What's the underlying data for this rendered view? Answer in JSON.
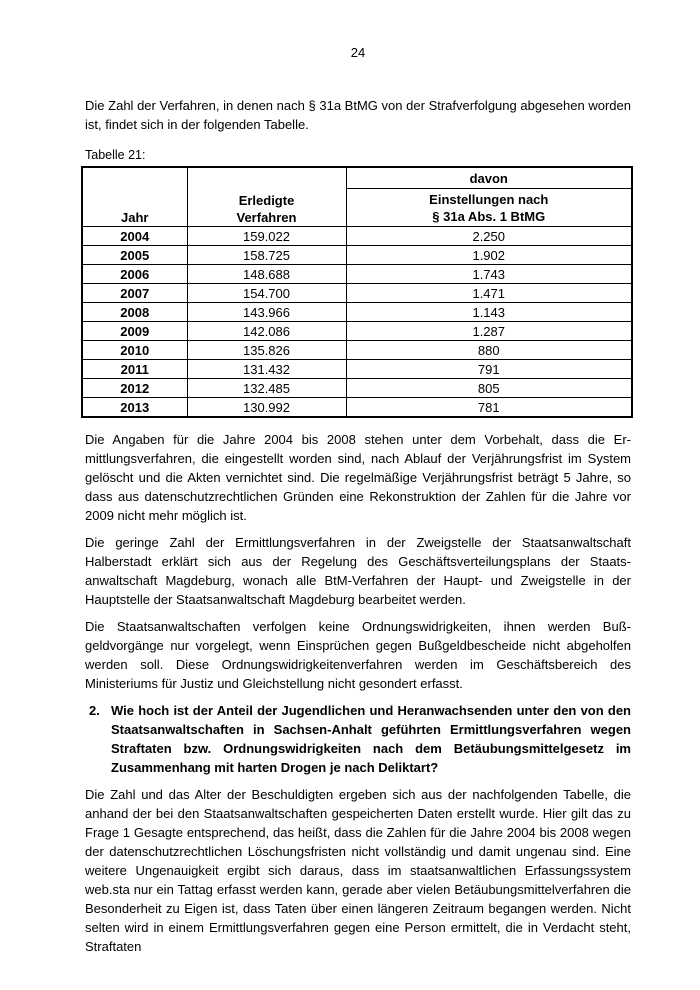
{
  "page_number": "24",
  "intro_paragraph": "Die Zahl der Verfahren, in denen nach § 31a BtMG von der Strafverfolgung abgese­hen worden ist, findet sich in der folgenden Tabelle.",
  "table_label": "Tabelle 21:",
  "table": {
    "headers": {
      "jahr": "Jahr",
      "erledigte": "Erledigte\nVerfahren",
      "davon": "davon",
      "einstellungen": "Einstellungen nach\n§ 31a Abs. 1 BtMG"
    },
    "rows": [
      {
        "jahr": "2004",
        "erledigte": "159.022",
        "einstellungen": "2.250"
      },
      {
        "jahr": "2005",
        "erledigte": "158.725",
        "einstellungen": "1.902"
      },
      {
        "jahr": "2006",
        "erledigte": "148.688",
        "einstellungen": "1.743"
      },
      {
        "jahr": "2007",
        "erledigte": "154.700",
        "einstellungen": "1.471"
      },
      {
        "jahr": "2008",
        "erledigte": "143.966",
        "einstellungen": "1.143"
      },
      {
        "jahr": "2009",
        "erledigte": "142.086",
        "einstellungen": "1.287"
      },
      {
        "jahr": "2010",
        "erledigte": "135.826",
        "einstellungen": "880"
      },
      {
        "jahr": "2011",
        "erledigte": "131.432",
        "einstellungen": "791"
      },
      {
        "jahr": "2012",
        "erledigte": "132.485",
        "einstellungen": "805"
      },
      {
        "jahr": "2013",
        "erledigte": "130.992",
        "einstellungen": "781"
      }
    ]
  },
  "paragraphs": {
    "vorbehalt": "Die Angaben für die Jahre 2004 bis 2008 stehen unter dem Vorbehalt, dass die Er­mittlungsverfahren, die eingestellt worden sind, nach Ablauf der Verjährungsfrist im System gelöscht und die Akten vernichtet sind. Die regelmäßige Verjährungsfrist be­trägt 5 Jahre, so dass aus datenschutzrechtlichen Gründen eine Rekonstruktion der Zahlen für die Jahre vor 2009 nicht mehr möglich ist.",
    "halberstadt": "Die geringe Zahl der Ermittlungsverfahren in der Zweigstelle der Staatsanwaltschaft Halberstadt erklärt sich aus der Regelung des Geschäftsverteilungsplans der Staats­anwaltschaft Magdeburg, wonach alle BtM-Verfahren der Haupt- und Zweigstelle in der Hauptstelle der Staatsanwaltschaft Magdeburg bearbeitet werden.",
    "ordnungswidrigkeiten": "Die Staatsanwaltschaften verfolgen keine Ordnungswidrigkeiten, ihnen werden Buß­geldvorgänge nur vorgelegt, wenn Einsprüchen gegen Bußgeldbescheide nicht ab­geholfen werden soll. Diese Ordnungswidrigkeitenverfahren werden im Geschäftsbe­reich des Ministeriums für Justiz und Gleichstellung nicht gesondert erfasst."
  },
  "question": {
    "number": "2.",
    "text": "Wie hoch ist der Anteil der Jugendlichen und Heranwachsenden unter den von den Staatsanwaltschaften in Sachsen-Anhalt geführten Ermittlungsver­fahren wegen Straftaten bzw. Ordnungswidrigkeiten nach dem Betäu­bungsmittelgesetz im Zusammenhang mit harten Drogen je nach Deliktart?"
  },
  "answer_paragraph": "Die Zahl und das Alter der Beschuldigten ergeben sich aus der nachfolgenden Tabel­le, die anhand der bei den Staatsanwaltschaften gespeicherten Daten erstellt wurde. Hier gilt das zu Frage 1 Gesagte entsprechend, das heißt, dass die Zahlen für die Jahre 2004 bis 2008 wegen der datenschutzrechtlichen Löschungsfristen nicht voll­ständig und damit ungenau sind. Eine weitere Ungenauigkeit ergibt sich daraus, dass im staatsanwaltlichen Erfassungssystem web.sta nur ein Tattag erfasst werden kann, gerade aber vielen Betäubungsmittelverfahren die Besonderheit zu Eigen ist, dass Taten über einen längeren Zeitraum begangen werden. Nicht selten wird in einem Ermittlungsverfahren gegen eine Person ermittelt, die in Verdacht steht, Straftaten"
}
